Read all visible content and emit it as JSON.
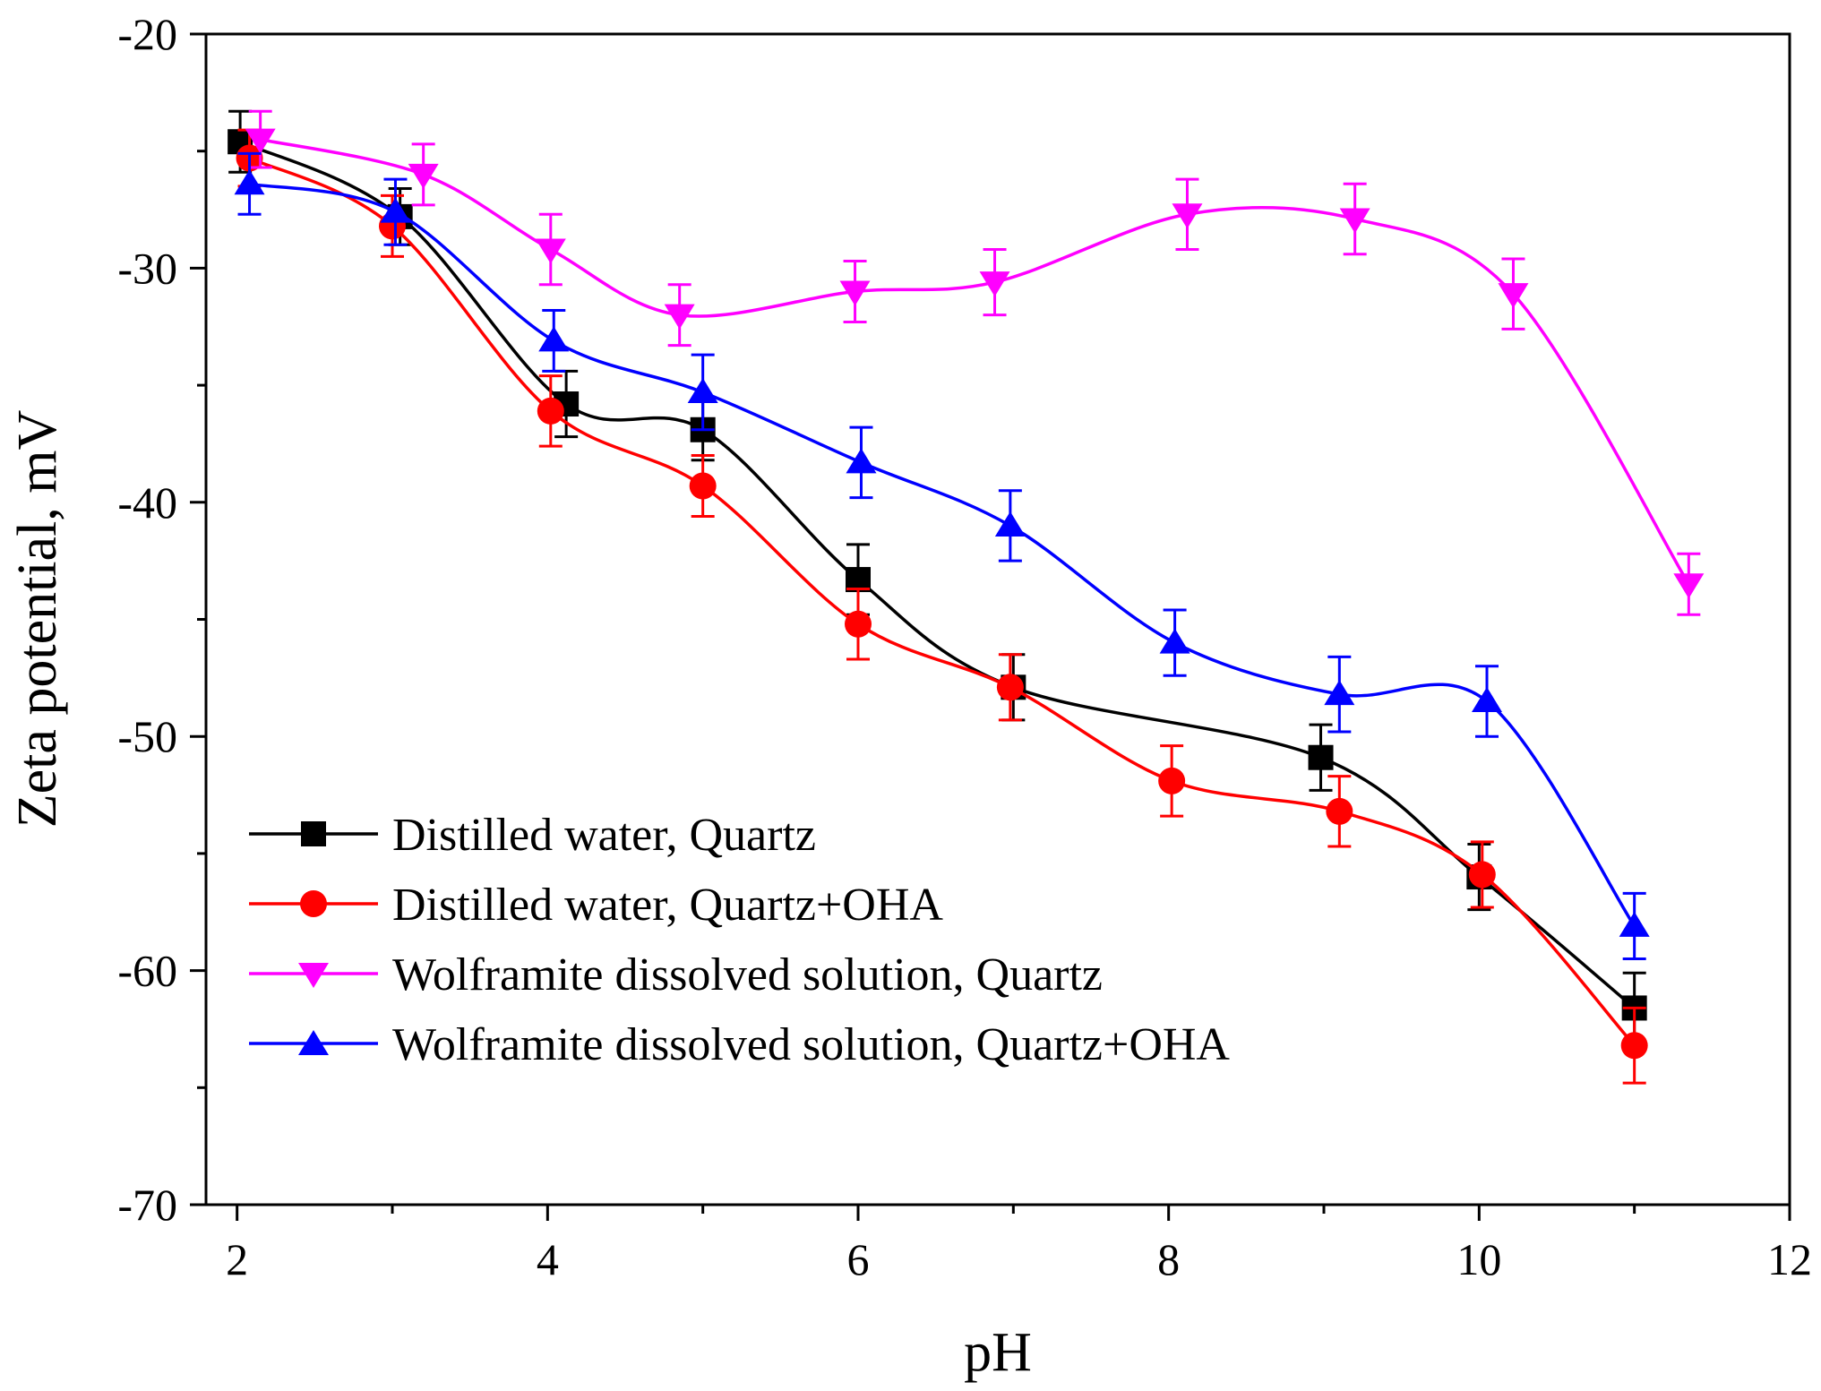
{
  "chart_data": {
    "type": "line",
    "title": "",
    "xlabel": "pH",
    "ylabel": "Zeta potential, mV",
    "xlim": [
      1.8,
      12
    ],
    "ylim": [
      -70,
      -20
    ],
    "x_major_ticks": [
      2,
      4,
      6,
      8,
      10,
      12
    ],
    "x_tick_labels": [
      "2",
      "4",
      "6",
      "8",
      "10",
      "12"
    ],
    "y_major_ticks": [
      -70,
      -60,
      -50,
      -40,
      -30,
      -20
    ],
    "y_tick_labels": [
      "-70",
      "-60",
      "-50",
      "-40",
      "-30",
      "-20"
    ],
    "grid": false,
    "legend_position": "bottom-left",
    "series": [
      {
        "name": "Distilled water, Quartz",
        "color": "#000000",
        "marker": "square",
        "x": [
          2.02,
          3.05,
          4.12,
          5.0,
          6.0,
          7.0,
          8.98,
          10.0,
          11.0
        ],
        "y": [
          -24.6,
          -27.8,
          -35.8,
          -36.9,
          -43.3,
          -47.9,
          -50.9,
          -56.0,
          -61.6
        ],
        "error": [
          1.3,
          1.2,
          1.4,
          1.3,
          1.5,
          1.4,
          1.4,
          1.4,
          1.5
        ]
      },
      {
        "name": "Distilled water, Quartz+OHA",
        "color": "#ff0000",
        "marker": "circle",
        "x": [
          2.08,
          3.0,
          4.02,
          5.0,
          6.0,
          6.98,
          8.02,
          9.1,
          10.02,
          11.0
        ],
        "y": [
          -25.3,
          -28.2,
          -36.1,
          -39.3,
          -45.2,
          -47.9,
          -51.9,
          -53.2,
          -55.9,
          -63.2
        ],
        "error": [
          1.2,
          1.3,
          1.5,
          1.3,
          1.5,
          1.4,
          1.5,
          1.5,
          1.4,
          1.6
        ]
      },
      {
        "name": "Wolframite dissolved solution, Quartz",
        "color": "#ff00ff",
        "marker": "triangle-down",
        "x": [
          2.15,
          3.2,
          4.02,
          4.85,
          5.98,
          6.88,
          8.12,
          9.2,
          10.22,
          11.35
        ],
        "y": [
          -24.5,
          -26.0,
          -29.2,
          -32.0,
          -31.0,
          -30.6,
          -27.7,
          -27.9,
          -31.1,
          -43.5
        ],
        "error": [
          1.2,
          1.3,
          1.5,
          1.3,
          1.3,
          1.4,
          1.5,
          1.5,
          1.5,
          1.3
        ]
      },
      {
        "name": "Wolframite dissolved solution, Quartz+OHA",
        "color": "#0000ff",
        "marker": "triangle-up",
        "x": [
          2.08,
          3.02,
          4.04,
          5.0,
          6.02,
          6.98,
          8.04,
          9.1,
          10.05,
          11.0
        ],
        "y": [
          -26.4,
          -27.6,
          -33.1,
          -35.3,
          -38.3,
          -41.0,
          -46.0,
          -48.2,
          -48.5,
          -58.1
        ],
        "error": [
          1.3,
          1.4,
          1.3,
          1.6,
          1.5,
          1.5,
          1.4,
          1.6,
          1.5,
          1.4
        ]
      }
    ]
  }
}
